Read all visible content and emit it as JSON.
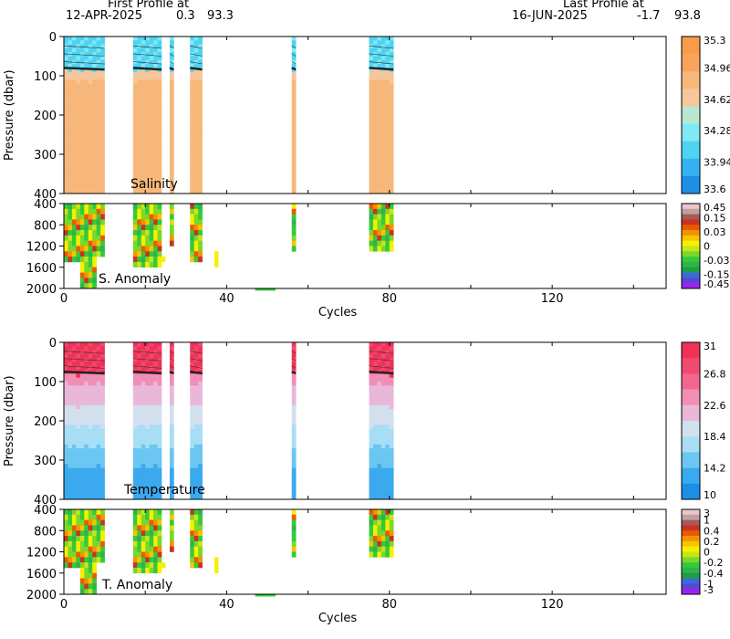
{
  "header": {
    "first_label": "First Profile at",
    "first_date": "12-APR-2025",
    "first_lon": "0.3",
    "first_lat": "93.3",
    "last_label": "Last Profile at",
    "last_date": "16-JUN-2025",
    "last_lon": "-1.7",
    "last_lat": "93.8"
  },
  "colors": {
    "salinity_scale": [
      "#1f8fe6",
      "#33b2ef",
      "#4fd3f2",
      "#7fe9f5",
      "#b9e8d0",
      "#f6c79a",
      "#f8b77a",
      "#f9a35c",
      "#f99c4a"
    ],
    "temperature_scale": [
      "#1b8fe6",
      "#3aa9ee",
      "#6bc6f2",
      "#a8def5",
      "#d2e0ee",
      "#e9b7d8",
      "#f08eb6",
      "#f3678f",
      "#f24a6f",
      "#f03257"
    ],
    "anomaly_scale": [
      "#a020f0",
      "#5a46d2",
      "#3a6bd8",
      "#1f9e44",
      "#2fb34a",
      "#35c93c",
      "#7ad82a",
      "#c8e617",
      "#f5f000",
      "#f8c400",
      "#f59200",
      "#e85a00",
      "#c83424",
      "#a85a5a",
      "#c0a0a0",
      "#e8c8c8"
    ]
  },
  "chart_data": [
    {
      "type": "heatmap",
      "name": "salinity",
      "annotation": "Salinity",
      "ylabel": "Pressure (dbar)",
      "xlim": [
        0,
        148
      ],
      "ylim": [
        400,
        0
      ],
      "yticks": [
        0,
        100,
        200,
        300,
        400
      ],
      "colorbar_labels": [
        "35.3",
        "34.96",
        "34.62",
        "34.28",
        "33.94",
        "33.6"
      ],
      "clim": [
        33.6,
        35.47
      ],
      "profile_groups": [
        [
          0,
          10
        ],
        [
          17,
          24
        ],
        [
          26,
          27
        ],
        [
          31,
          34
        ],
        [
          56,
          57
        ],
        [
          75,
          81
        ]
      ],
      "mixed_layer_dbar": 80,
      "surface_value": 34.0,
      "deep_value": 35.0
    },
    {
      "type": "heatmap",
      "name": "salinity-anomaly",
      "annotation": "S. Anomaly",
      "xlabel": "Cycles",
      "xlim": [
        0,
        148
      ],
      "ylim": [
        2000,
        400
      ],
      "xticks": [
        0,
        40,
        80,
        120
      ],
      "yticks": [
        400,
        800,
        1200,
        1600,
        2000
      ],
      "colorbar_labels": [
        "0.45",
        "0.15",
        "0.03",
        "0",
        "-0.03",
        "-0.15",
        "-0.45"
      ],
      "profile_groups": [
        [
          0,
          10
        ],
        [
          17,
          24
        ],
        [
          26,
          27
        ],
        [
          31,
          34
        ],
        [
          56,
          57
        ],
        [
          75,
          81
        ]
      ]
    },
    {
      "type": "heatmap",
      "name": "temperature",
      "annotation": "Temperature",
      "ylabel": "Pressure (dbar)",
      "xlim": [
        0,
        148
      ],
      "ylim": [
        400,
        0
      ],
      "yticks": [
        0,
        100,
        200,
        300,
        400
      ],
      "colorbar_labels": [
        "31",
        "26.8",
        "22.6",
        "18.4",
        "14.2",
        "10"
      ],
      "clim": [
        10,
        31
      ],
      "profile_groups": [
        [
          0,
          10
        ],
        [
          17,
          24
        ],
        [
          26,
          27
        ],
        [
          31,
          34
        ],
        [
          56,
          57
        ],
        [
          75,
          81
        ]
      ],
      "mixed_layer_dbar": 75,
      "surface_value": 29.5,
      "deep_value": 12.5
    },
    {
      "type": "heatmap",
      "name": "temperature-anomaly",
      "annotation": "T. Anomaly",
      "xlabel": "Cycles",
      "xlim": [
        0,
        148
      ],
      "ylim": [
        2000,
        400
      ],
      "xticks": [
        0,
        40,
        80,
        120
      ],
      "yticks": [
        400,
        800,
        1200,
        1600,
        2000
      ],
      "colorbar_labels": [
        "3",
        "1",
        "0.4",
        "0.2",
        "0",
        "-0.2",
        "-0.4",
        "-1",
        "-3"
      ],
      "profile_groups": [
        [
          0,
          10
        ],
        [
          17,
          24
        ],
        [
          26,
          27
        ],
        [
          31,
          34
        ],
        [
          56,
          57
        ],
        [
          75,
          81
        ]
      ]
    }
  ]
}
